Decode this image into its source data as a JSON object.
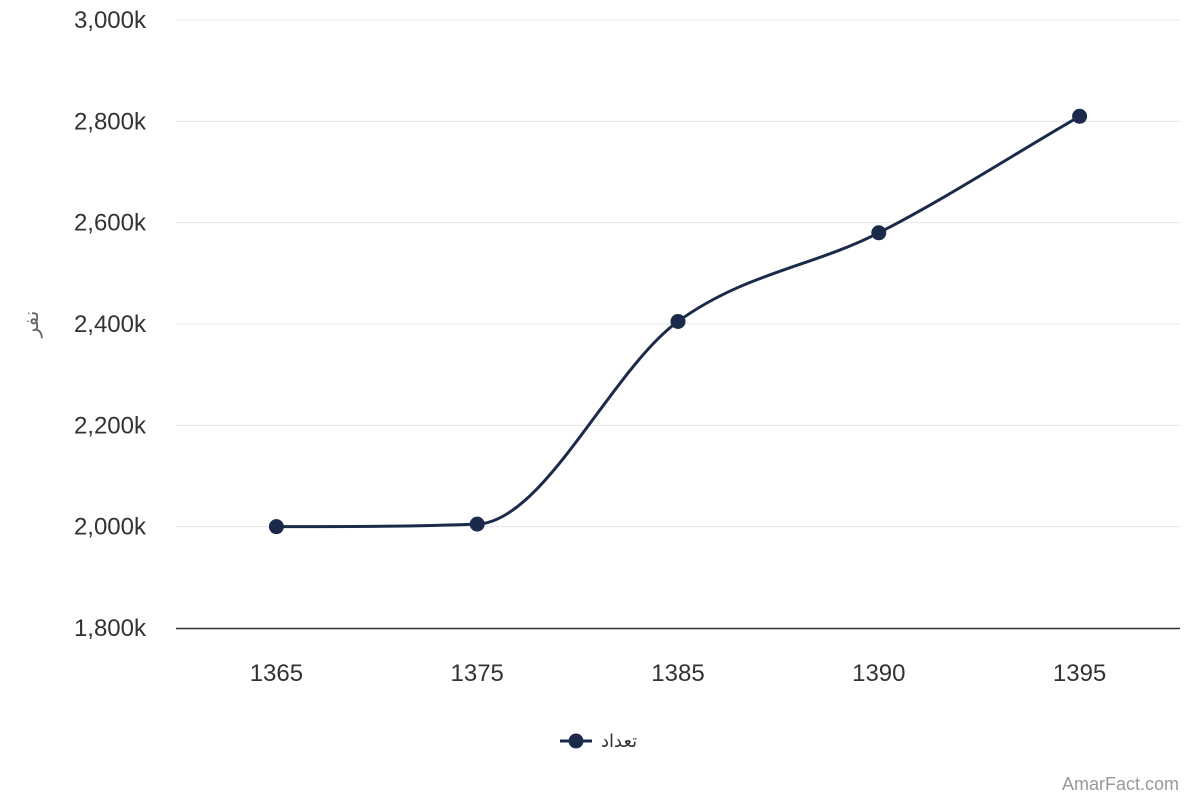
{
  "chart_data": {
    "type": "line",
    "x": [
      "1365",
      "1375",
      "1385",
      "1390",
      "1395"
    ],
    "categories": [
      "1365",
      "1375",
      "1385",
      "1390",
      "1395"
    ],
    "series": [
      {
        "name": "تعداد",
        "values": [
          2000000,
          2005000,
          2405000,
          2580000,
          2810000
        ]
      }
    ],
    "ylabel": "نفر",
    "xlabel": "",
    "ylim": [
      1800000,
      3000000
    ],
    "yticks": [
      1800000,
      2000000,
      2200000,
      2400000,
      2600000,
      2800000,
      3000000
    ],
    "ytick_labels": [
      "1,800k",
      "2,000k",
      "2,200k",
      "2,400k",
      "2,600k",
      "2,800k",
      "3,000k"
    ],
    "grid": true,
    "smooth": true,
    "legend": "bottom-center",
    "colors": {
      "series": "#1b2a4a",
      "grid": "#e6e6e6",
      "axis": "#333333",
      "text": "#333333",
      "credit": "#999999"
    }
  },
  "credit": "AmarFact.com"
}
